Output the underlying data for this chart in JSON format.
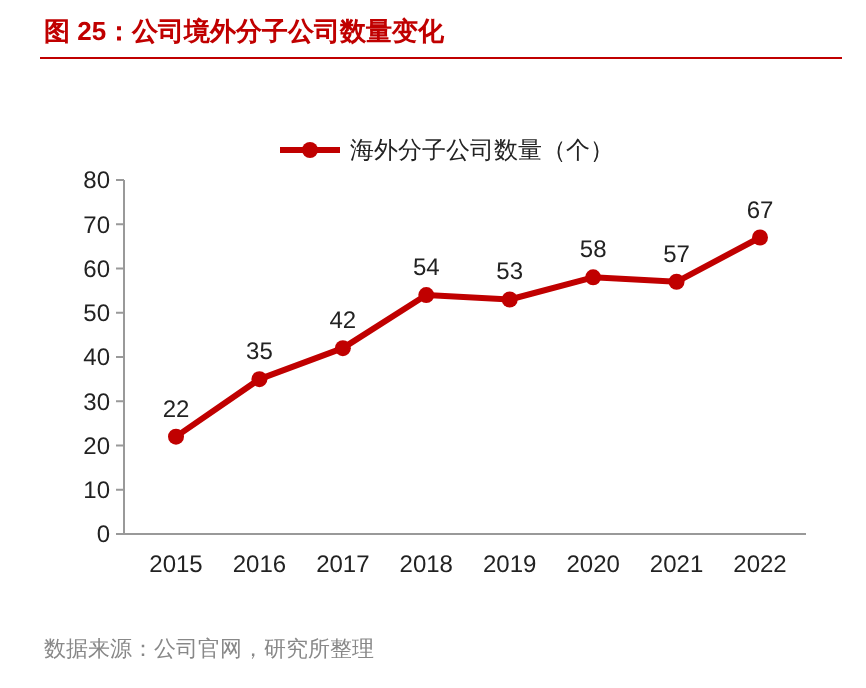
{
  "chart_data": {
    "type": "line",
    "title": "图 25：公司境外分子公司数量变化",
    "categories": [
      "2015",
      "2016",
      "2017",
      "2018",
      "2019",
      "2020",
      "2021",
      "2022"
    ],
    "series": [
      {
        "name": "海外分子公司数量（个）",
        "color": "#c00000",
        "values": [
          22,
          35,
          42,
          54,
          53,
          58,
          57,
          67
        ]
      }
    ],
    "ylim": [
      0,
      80
    ],
    "yticks": [
      0,
      10,
      20,
      30,
      40,
      50,
      60,
      70,
      80
    ],
    "data_labels": true,
    "legend": "top",
    "marker": "circle",
    "grid": false,
    "annotations": [
      "数据来源：公司官网，研究所整理"
    ]
  }
}
